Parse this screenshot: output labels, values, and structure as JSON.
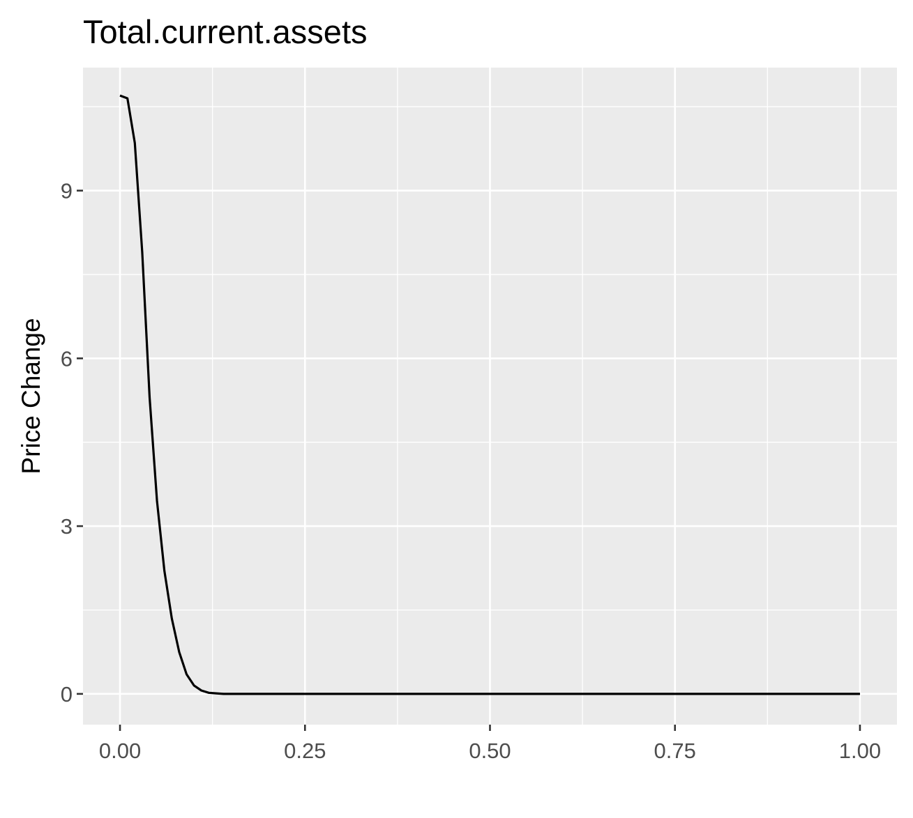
{
  "chart_data": {
    "type": "line",
    "title": "Total.current.assets",
    "xlabel": "",
    "ylabel": "Price Change",
    "xlim": [
      -0.05,
      1.05
    ],
    "ylim": [
      -0.55,
      11.2
    ],
    "x_ticks": [
      0.0,
      0.25,
      0.5,
      0.75,
      1.0
    ],
    "x_tick_labels": [
      "0.00",
      "0.25",
      "0.50",
      "0.75",
      "1.00"
    ],
    "y_ticks": [
      0,
      3,
      6,
      9
    ],
    "y_tick_labels": [
      "0",
      "3",
      "6",
      "9"
    ],
    "grid": true,
    "series": [
      {
        "color": "#000000",
        "x": [
          0.0,
          0.01,
          0.02,
          0.03,
          0.04,
          0.05,
          0.06,
          0.07,
          0.08,
          0.09,
          0.1,
          0.11,
          0.12,
          0.13,
          0.14,
          0.15,
          0.2,
          0.3,
          0.4,
          0.5,
          0.6,
          0.7,
          0.8,
          0.9,
          1.0
        ],
        "y": [
          10.7,
          10.65,
          9.85,
          7.9,
          5.3,
          3.45,
          2.2,
          1.35,
          0.75,
          0.35,
          0.15,
          0.06,
          0.02,
          0.01,
          0.0,
          0.0,
          0.0,
          0.0,
          0.0,
          0.0,
          0.0,
          0.0,
          0.0,
          0.0,
          0.0
        ]
      }
    ],
    "colors": {
      "panel_background": "#ebebeb",
      "grid_major": "#ffffff",
      "grid_minor": "#ffffff",
      "tick_label": "#4d4d4d",
      "tick_mark": "#333333"
    }
  }
}
